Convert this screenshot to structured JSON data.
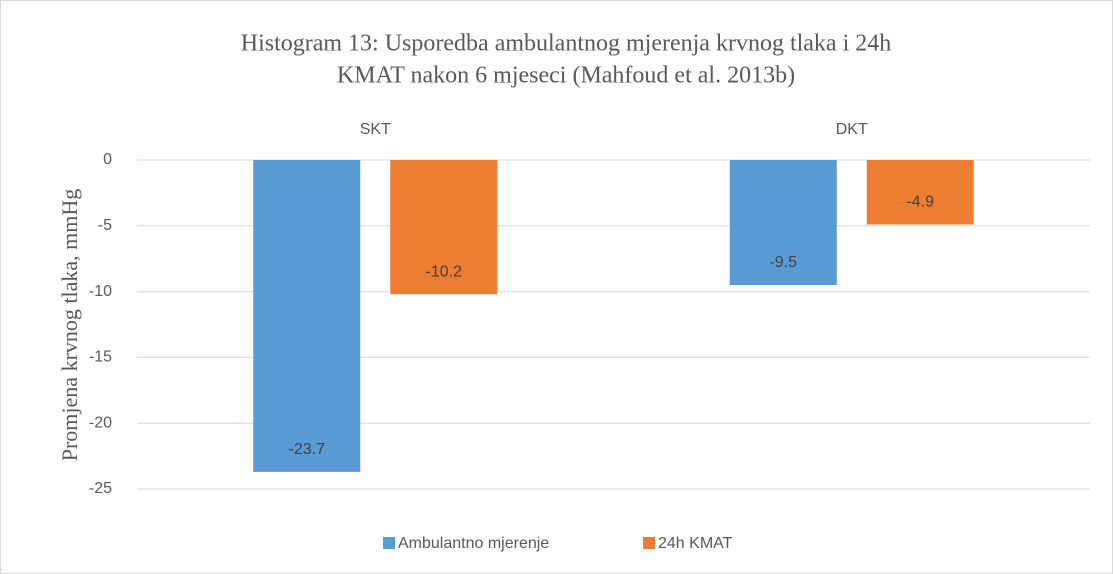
{
  "chart_data": {
    "type": "bar",
    "title": [
      "Histogram 13: Usporedba ambulantnog mjerenja krvnog tlaka i 24h",
      "KMAT nakon 6 mjeseci (Mahfoud et al. 2013b)"
    ],
    "y_label": "Promjena krvnog tlaka, mmHg",
    "categories": [
      "SKT",
      "DKT"
    ],
    "series": [
      {
        "name": "Ambulantno mjerenje",
        "color": "#5b9bd5",
        "values": [
          -23.7,
          -9.5
        ]
      },
      {
        "name": "24h KMAT",
        "color": "#ed7d31",
        "values": [
          -10.2,
          -4.9
        ]
      }
    ],
    "ylim": [
      -25,
      0
    ],
    "yticks": [
      0,
      -5,
      -10,
      -15,
      -20,
      -25
    ],
    "grid": true,
    "legend": "bottom"
  }
}
